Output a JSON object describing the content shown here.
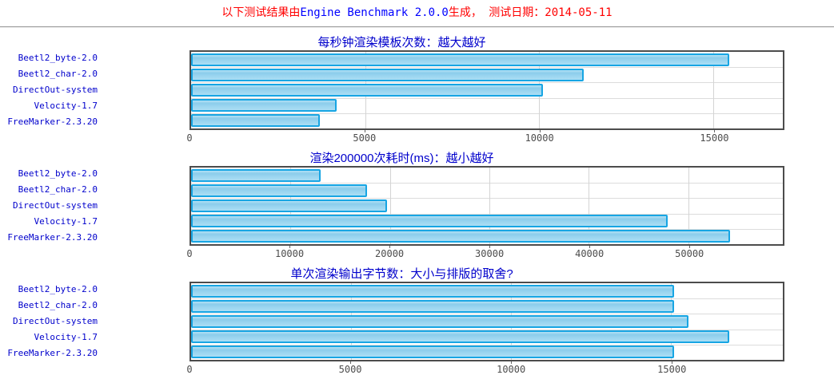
{
  "header": {
    "prefix": "以下测试结果由",
    "engine_name": "Engine Benchmark 2.0.0",
    "suffix": "生成， 测试日期：2014-05-11"
  },
  "colors": {
    "header_text": "#ff0000",
    "engine_text": "#0000ff",
    "chart_title": "#0000cc",
    "category_label": "#0000cc",
    "axis_text": "#4d4d4d",
    "plot_border": "#4c4c4c",
    "gridline": "#d9d9d9",
    "bar_border": "#17a5e3",
    "bar_fill": "#9bd5f0"
  },
  "chart_data": [
    {
      "type": "bar",
      "orientation": "horizontal",
      "title": "每秒钟渲染模板次数：越大越好",
      "categories": [
        "Beetl2_byte-2.0",
        "Beetl2_char-2.0",
        "DirectOut-system",
        "Velocity-1.7",
        "FreeMarker-2.3.20"
      ],
      "values": [
        15450,
        11290,
        10100,
        4180,
        3690
      ],
      "xlim": [
        0,
        17000
      ],
      "ticks": [
        0,
        5000,
        10000,
        15000
      ],
      "xlabel": "",
      "ylabel": "",
      "grid": true,
      "legend": false
    },
    {
      "type": "bar",
      "orientation": "horizontal",
      "title": "渲染200000次耗时(ms)：越小越好",
      "categories": [
        "Beetl2_byte-2.0",
        "Beetl2_char-2.0",
        "DirectOut-system",
        "Velocity-1.7",
        "FreeMarker-2.3.20"
      ],
      "values": [
        13000,
        17700,
        19700,
        47900,
        54200
      ],
      "xlim": [
        0,
        59500
      ],
      "ticks": [
        0,
        10000,
        20000,
        30000,
        40000,
        50000
      ],
      "xlabel": "",
      "ylabel": "",
      "grid": true,
      "legend": false
    },
    {
      "type": "bar",
      "orientation": "horizontal",
      "title": "单次渲染输出字节数：大小与排版的取舍?",
      "categories": [
        "Beetl2_byte-2.0",
        "Beetl2_char-2.0",
        "DirectOut-system",
        "Velocity-1.7",
        "FreeMarker-2.3.20"
      ],
      "values": [
        15100,
        15100,
        15550,
        16830,
        15100
      ],
      "xlim": [
        0,
        18500
      ],
      "ticks": [
        0,
        5000,
        10000,
        15000
      ],
      "xlabel": "",
      "ylabel": "",
      "grid": true,
      "legend": false
    }
  ]
}
